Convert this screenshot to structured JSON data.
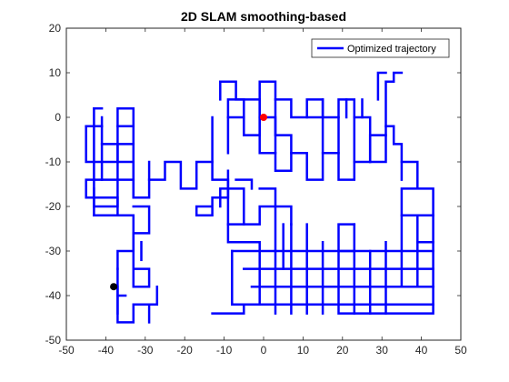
{
  "chart_data": {
    "type": "line",
    "title": "2D SLAM smoothing-based",
    "xlabel": "",
    "ylabel": "",
    "xlim": [
      -50,
      50
    ],
    "ylim": [
      -50,
      20
    ],
    "xticks": [
      -50,
      -40,
      -30,
      -20,
      -10,
      0,
      10,
      20,
      30,
      40,
      50
    ],
    "yticks": [
      -50,
      -40,
      -30,
      -20,
      -10,
      0,
      10,
      20
    ],
    "grid": false,
    "legend": {
      "position": "top-right",
      "entries": [
        "Optimized trajectory"
      ]
    },
    "colors": {
      "trajectory": "#0000ff",
      "start_marker": "#ff0000",
      "end_marker": "#000000",
      "axis": "#262626"
    },
    "series": [
      {
        "name": "Optimized trajectory",
        "segments": [
          [
            [
              -11,
              4
            ],
            [
              -11,
              8
            ],
            [
              -7,
              8
            ],
            [
              -7,
              4
            ],
            [
              -5,
              4
            ],
            [
              -5,
              -4
            ],
            [
              -1,
              -4
            ],
            [
              -1,
              8
            ],
            [
              3,
              8
            ],
            [
              3,
              4
            ],
            [
              7,
              4
            ],
            [
              7,
              0
            ],
            [
              11,
              0
            ],
            [
              11,
              4
            ],
            [
              15,
              4
            ],
            [
              15,
              0
            ],
            [
              19,
              0
            ],
            [
              19,
              4
            ],
            [
              23,
              4
            ],
            [
              23,
              0
            ],
            [
              27,
              0
            ],
            [
              27,
              -10
            ],
            [
              31,
              -10
            ],
            [
              31,
              -2
            ],
            [
              31,
              8
            ],
            [
              33,
              8
            ],
            [
              33,
              10
            ],
            [
              35,
              10
            ]
          ],
          [
            [
              -13,
              0
            ],
            [
              -13,
              -14
            ],
            [
              -9,
              -14
            ],
            [
              -9,
              -18
            ],
            [
              -13,
              -18
            ],
            [
              -13,
              -22
            ],
            [
              -17,
              -22
            ],
            [
              -17,
              -20
            ],
            [
              -13,
              -20
            ]
          ],
          [
            [
              -11,
              -20
            ],
            [
              -11,
              -16
            ],
            [
              -5,
              -16
            ],
            [
              -5,
              -24
            ],
            [
              -9,
              -24
            ],
            [
              -9,
              -12
            ]
          ],
          [
            [
              -9,
              -8
            ],
            [
              -9,
              4
            ],
            [
              -1,
              4
            ],
            [
              -1,
              -8
            ],
            [
              3,
              -8
            ],
            [
              3,
              -12
            ],
            [
              7,
              -12
            ],
            [
              7,
              -8
            ],
            [
              11,
              -8
            ],
            [
              11,
              -14
            ],
            [
              15,
              -14
            ],
            [
              15,
              -8
            ],
            [
              19,
              -8
            ],
            [
              19,
              -14
            ],
            [
              23,
              -14
            ],
            [
              23,
              -10
            ],
            [
              27,
              -10
            ]
          ],
          [
            [
              -5,
              0
            ],
            [
              -9,
              0
            ]
          ],
          [
            [
              -1,
              0
            ],
            [
              3,
              0
            ],
            [
              3,
              -4
            ],
            [
              7,
              -4
            ],
            [
              7,
              -8
            ]
          ],
          [
            [
              3,
              4
            ],
            [
              3,
              -8
            ]
          ],
          [
            [
              15,
              4
            ],
            [
              15,
              -8
            ],
            [
              19,
              -8
            ],
            [
              19,
              0
            ]
          ],
          [
            [
              23,
              0
            ],
            [
              23,
              -10
            ]
          ],
          [
            [
              25,
              4
            ],
            [
              25,
              0
            ]
          ],
          [
            [
              21,
              4
            ],
            [
              21,
              0
            ]
          ],
          [
            [
              15,
              0
            ],
            [
              11,
              0
            ]
          ],
          [
            [
              27,
              -10
            ],
            [
              27,
              -4
            ],
            [
              31,
              -4
            ]
          ],
          [
            [
              31,
              -2
            ],
            [
              33,
              -2
            ],
            [
              33,
              -6
            ],
            [
              35,
              -6
            ],
            [
              35,
              -10
            ],
            [
              35,
              -14
            ]
          ],
          [
            [
              29,
              4
            ],
            [
              29,
              10
            ],
            [
              31,
              10
            ]
          ],
          [
            [
              35,
              -10
            ],
            [
              39,
              -10
            ],
            [
              39,
              -16
            ],
            [
              35,
              -16
            ],
            [
              35,
              -22
            ],
            [
              39,
              -22
            ],
            [
              39,
              -28
            ],
            [
              43,
              -28
            ],
            [
              43,
              -16
            ],
            [
              39,
              -16
            ]
          ],
          [
            [
              39,
              -22
            ],
            [
              43,
              -22
            ]
          ],
          [
            [
              35,
              -22
            ],
            [
              35,
              -30
            ]
          ],
          [
            [
              43,
              -28
            ],
            [
              43,
              -44
            ],
            [
              19,
              -44
            ],
            [
              19,
              -30
            ],
            [
              23,
              -30
            ]
          ],
          [
            [
              39,
              -28
            ],
            [
              39,
              -38
            ],
            [
              43,
              -38
            ]
          ],
          [
            [
              35,
              -30
            ],
            [
              35,
              -38
            ],
            [
              39,
              -38
            ]
          ],
          [
            [
              31,
              -28
            ],
            [
              31,
              -44
            ]
          ],
          [
            [
              27,
              -30
            ],
            [
              27,
              -44
            ]
          ],
          [
            [
              23,
              -24
            ],
            [
              23,
              -44
            ]
          ],
          [
            [
              19,
              -30
            ],
            [
              19,
              -24
            ],
            [
              23,
              -24
            ]
          ],
          [
            [
              15,
              -28
            ],
            [
              15,
              -44
            ]
          ],
          [
            [
              11,
              -24
            ],
            [
              11,
              -44
            ]
          ],
          [
            [
              7,
              -24
            ],
            [
              7,
              -44
            ]
          ],
          [
            [
              3,
              -30
            ],
            [
              3,
              -44
            ]
          ],
          [
            [
              -1,
              -30
            ],
            [
              -1,
              -38
            ]
          ],
          [
            [
              -8,
              -30
            ],
            [
              -8,
              -42
            ],
            [
              -5,
              -42
            ]
          ],
          [
            [
              -8,
              -30
            ],
            [
              43,
              -30
            ]
          ],
          [
            [
              -5,
              -34
            ],
            [
              43,
              -34
            ]
          ],
          [
            [
              -3,
              -38
            ],
            [
              43,
              -38
            ]
          ],
          [
            [
              -5,
              -42
            ],
            [
              -5,
              -44
            ],
            [
              -13,
              -44
            ]
          ],
          [
            [
              -5,
              -42
            ],
            [
              43,
              -42
            ]
          ],
          [
            [
              5,
              -24
            ],
            [
              5,
              -34
            ]
          ],
          [
            [
              -1,
              -38
            ],
            [
              -1,
              -42
            ]
          ],
          [
            [
              -9,
              -24
            ],
            [
              -9,
              -28
            ],
            [
              -1,
              -28
            ],
            [
              -1,
              -30
            ]
          ],
          [
            [
              -5,
              -24
            ],
            [
              -1,
              -24
            ],
            [
              -1,
              -20
            ],
            [
              3,
              -20
            ],
            [
              3,
              -30
            ]
          ],
          [
            [
              -1,
              -16
            ],
            [
              3,
              -16
            ],
            [
              3,
              -20
            ],
            [
              7,
              -20
            ],
            [
              7,
              -24
            ]
          ],
          [
            [
              -7,
              -14
            ],
            [
              -3,
              -14
            ],
            [
              -3,
              -16
            ]
          ],
          [
            [
              -45,
              -2
            ],
            [
              -45,
              -10
            ],
            [
              -41,
              -10
            ],
            [
              -41,
              -14
            ],
            [
              -45,
              -14
            ],
            [
              -45,
              -18
            ],
            [
              -37,
              -18
            ],
            [
              -37,
              -22
            ],
            [
              -43,
              -22
            ],
            [
              -43,
              -16
            ]
          ],
          [
            [
              -43,
              2
            ],
            [
              -43,
              -20
            ],
            [
              -37,
              -20
            ],
            [
              -37,
              -10
            ],
            [
              -33,
              -10
            ],
            [
              -33,
              -18
            ],
            [
              -29,
              -18
            ],
            [
              -29,
              -14
            ],
            [
              -25,
              -14
            ],
            [
              -25,
              -10
            ],
            [
              -21,
              -10
            ],
            [
              -21,
              -16
            ],
            [
              -17,
              -16
            ],
            [
              -17,
              -10
            ],
            [
              -13,
              -10
            ]
          ],
          [
            [
              -41,
              -2
            ],
            [
              -41,
              -10
            ],
            [
              -37,
              -10
            ],
            [
              -37,
              -2
            ],
            [
              -33,
              -2
            ],
            [
              -33,
              -18
            ]
          ],
          [
            [
              -41,
              -2
            ],
            [
              -45,
              -2
            ]
          ],
          [
            [
              -41,
              0
            ],
            [
              -41,
              -2
            ]
          ],
          [
            [
              -37,
              -10
            ],
            [
              -37,
              -6
            ],
            [
              -41,
              -6
            ]
          ],
          [
            [
              -37,
              -6
            ],
            [
              -33,
              -6
            ]
          ],
          [
            [
              -33,
              -2
            ],
            [
              -33,
              2
            ],
            [
              -37,
              2
            ],
            [
              -37,
              -2
            ]
          ],
          [
            [
              -41,
              2
            ],
            [
              -43,
              2
            ]
          ],
          [
            [
              -41,
              -14
            ],
            [
              -37,
              -14
            ],
            [
              -33,
              -14
            ]
          ],
          [
            [
              -29,
              -10
            ],
            [
              -29,
              -14
            ]
          ],
          [
            [
              -43,
              -22
            ],
            [
              -33,
              -22
            ],
            [
              -33,
              -38
            ],
            [
              -29,
              -38
            ],
            [
              -29,
              -34
            ],
            [
              -33,
              -34
            ]
          ],
          [
            [
              -37,
              -34
            ],
            [
              -37,
              -46
            ],
            [
              -33,
              -46
            ],
            [
              -33,
              -42
            ],
            [
              -27,
              -42
            ],
            [
              -27,
              -38
            ]
          ],
          [
            [
              -37,
              -34
            ],
            [
              -37,
              -30
            ],
            [
              -33,
              -30
            ],
            [
              -33,
              -26
            ],
            [
              -29,
              -26
            ],
            [
              -29,
              -20
            ],
            [
              -33,
              -20
            ]
          ],
          [
            [
              -31,
              -28
            ],
            [
              -31,
              -32
            ]
          ],
          [
            [
              -37,
              -40
            ],
            [
              -37,
              -44
            ]
          ],
          [
            [
              -29,
              -46
            ],
            [
              -29,
              -42
            ]
          ],
          [
            [
              -35,
              -40
            ],
            [
              -37,
              -40
            ]
          ],
          [
            [
              -37,
              -38
            ],
            [
              -37,
              -40
            ]
          ]
        ]
      }
    ],
    "markers": [
      {
        "x": 0,
        "y": 0,
        "color": "#ff0000"
      },
      {
        "x": -38,
        "y": -38,
        "color": "#000000"
      }
    ]
  }
}
